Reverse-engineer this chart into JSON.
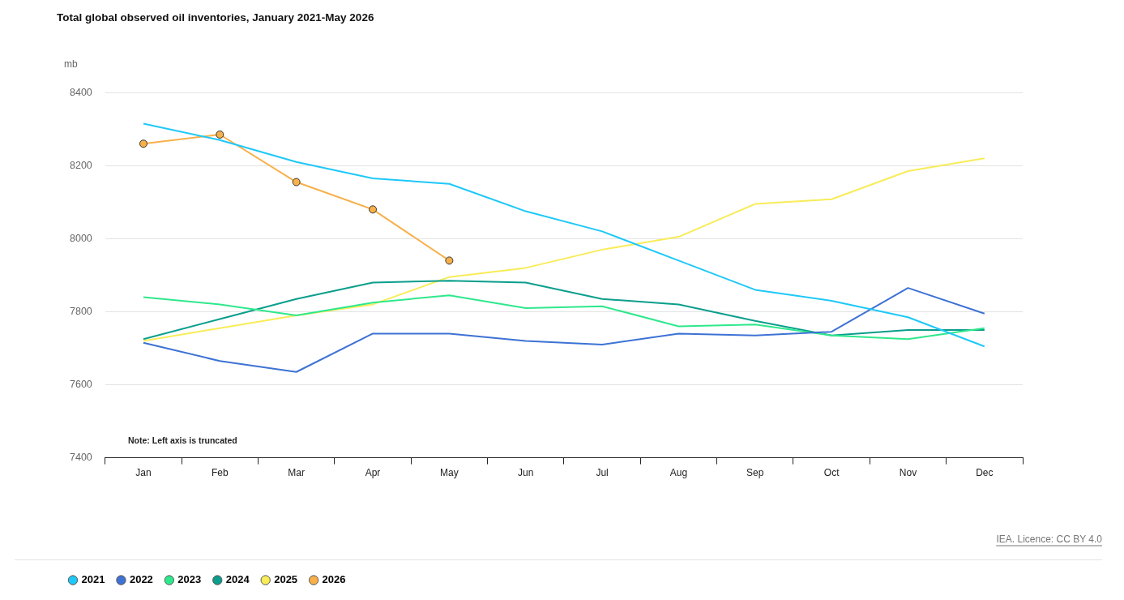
{
  "chart_data": {
    "type": "line",
    "title": "Total global observed oil inventories, January 2021-May 2026",
    "ylabel": "mb",
    "categories": [
      "Jan",
      "Feb",
      "Mar",
      "Apr",
      "May",
      "Jun",
      "Jul",
      "Aug",
      "Sep",
      "Oct",
      "Nov",
      "Dec"
    ],
    "series": [
      {
        "name": "2021",
        "color": "#1ec8f8",
        "values": [
          8315,
          8270,
          8210,
          8165,
          8150,
          8075,
          8020,
          7940,
          7860,
          7830,
          7785,
          7705
        ]
      },
      {
        "name": "2022",
        "color": "#3d72d4",
        "values": [
          7715,
          7665,
          7635,
          7740,
          7740,
          7720,
          7710,
          7740,
          7735,
          7745,
          7865,
          7795
        ]
      },
      {
        "name": "2023",
        "color": "#2ee88c",
        "values": [
          7840,
          7820,
          7790,
          7825,
          7845,
          7810,
          7815,
          7760,
          7765,
          7735,
          7725,
          7755
        ]
      },
      {
        "name": "2024",
        "color": "#0b9e8c",
        "values": [
          7725,
          7780,
          7835,
          7880,
          7885,
          7880,
          7835,
          7820,
          7775,
          7735,
          7750,
          7750
        ]
      },
      {
        "name": "2025",
        "color": "#f8ec58",
        "values": [
          7720,
          7755,
          7790,
          7820,
          7895,
          7920,
          7970,
          8005,
          8095,
          8108,
          8185,
          8220
        ]
      },
      {
        "name": "2026",
        "color": "#f7b04a",
        "marker": "circle",
        "values": [
          8260,
          8285,
          8155,
          8080,
          7940,
          null,
          null,
          null,
          null,
          null,
          null,
          null
        ]
      }
    ],
    "ylim": [
      7400,
      8400
    ],
    "yticks": [
      7400,
      7600,
      7800,
      8000,
      8200,
      8400
    ],
    "grid": "y",
    "legend": "bottom left",
    "line_style": "solid",
    "annotations": [
      "Note: Left axis is truncated",
      "IEA. Licence: CC BY 4.0"
    ]
  }
}
